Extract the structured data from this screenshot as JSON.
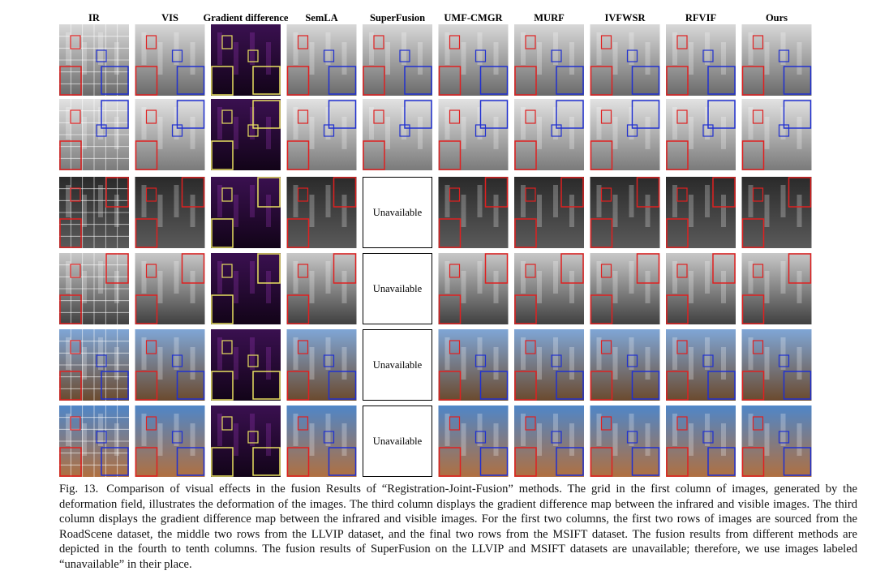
{
  "figure": {
    "columns": [
      "IR",
      "VIS",
      "Gradient difference",
      "SemLA",
      "SuperFusion",
      "UMF-CMGR",
      "MURF",
      "IVFWSR",
      "RFVIF",
      "Ours"
    ],
    "unavailable": [
      "Unavailable",
      "Unavailable",
      "Unavailable",
      "Unavailable"
    ],
    "caption": {
      "label": "Fig. 13.",
      "text": "Comparison of visual effects in the fusion Results of “Registration-Joint-Fusion” methods. The grid in the first column of images, generated by the deformation field, illustrates the deformation of the images. The third column displays the gradient difference map between the infrared and visible images. The third column displays the gradient difference map between the infrared and visible images. For the first two columns, the first two rows of images are sourced from the RoadScene dataset, the middle two rows from the LLVIP dataset, and the final two rows from the MSIFT dataset. The fusion results from different methods are depicted in the fourth to tenth columns. The fusion results of SuperFusion on the LLVIP and MSIFT datasets are unavailable; therefore, we use images labeled “unavailable” in their place."
    }
  }
}
